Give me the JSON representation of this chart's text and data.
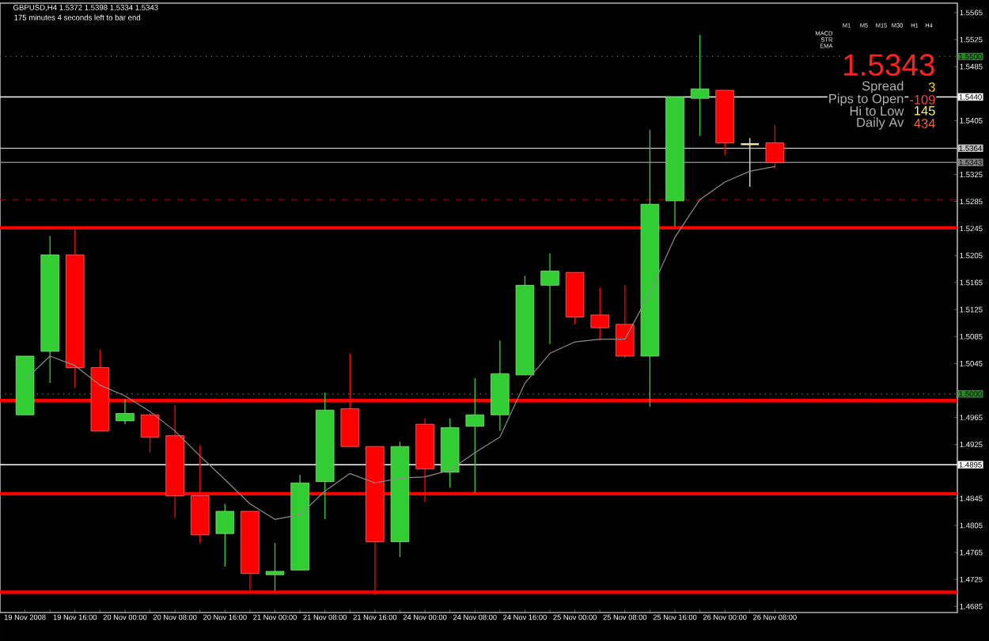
{
  "chart_data": {
    "type": "candlestick",
    "title": "GBPUSD,H4  1.5372 1.5398 1.5334 1.5343",
    "categories": [
      "19 Nov 2008",
      null,
      "19 Nov 16:00",
      null,
      "20 Nov 00:00",
      null,
      "20 Nov 08:00",
      null,
      "20 Nov 16:00",
      null,
      "21 Nov 00:00",
      null,
      "21 Nov 08:00",
      null,
      "21 Nov 16:00",
      null,
      "24 Nov 00:00",
      null,
      "24 Nov 08:00",
      null,
      "24 Nov 16:00",
      null,
      "25 Nov 00:00",
      null,
      "25 Nov 08:00",
      null,
      "25 Nov 16:00",
      null,
      "26 Nov 00:00",
      null,
      "26 Nov 08:00"
    ],
    "ohlc": [
      [
        1.4969,
        1.5056,
        1.4969,
        1.5056
      ],
      [
        1.5063,
        1.5234,
        1.5016,
        1.5206
      ],
      [
        1.5206,
        1.5248,
        1.5009,
        1.5039
      ],
      [
        1.5039,
        1.5065,
        1.4945,
        1.4945
      ],
      [
        1.496,
        1.4992,
        1.4955,
        1.4971
      ],
      [
        1.4969,
        1.4971,
        1.4913,
        1.4936
      ],
      [
        1.4938,
        1.4983,
        1.4816,
        1.4849
      ],
      [
        1.4849,
        1.4924,
        1.4779,
        1.4791
      ],
      [
        1.4793,
        1.4837,
        1.4744,
        1.4826
      ],
      [
        1.4826,
        1.4826,
        1.4708,
        1.4734
      ],
      [
        1.4732,
        1.4779,
        1.4708,
        1.4737
      ],
      [
        1.4739,
        1.488,
        1.4739,
        1.4868
      ],
      [
        1.487,
        1.5002,
        1.4814,
        1.4976
      ],
      [
        1.4978,
        1.506,
        1.4922,
        1.4922
      ],
      [
        1.4922,
        1.4922,
        1.4702,
        1.4781
      ],
      [
        1.4781,
        1.4929,
        1.4758,
        1.4922
      ],
      [
        1.4955,
        1.4964,
        1.484,
        1.4889
      ],
      [
        1.4884,
        1.4964,
        1.4861,
        1.495
      ],
      [
        1.4952,
        1.5023,
        1.4854,
        1.4969
      ],
      [
        1.4969,
        1.5079,
        1.4945,
        1.503
      ],
      [
        1.5028,
        1.5175,
        1.5028,
        1.5161
      ],
      [
        1.5161,
        1.5208,
        1.5074,
        1.5182
      ],
      [
        1.518,
        1.518,
        1.5103,
        1.5114
      ],
      [
        1.5117,
        1.5157,
        1.5079,
        1.5098
      ],
      [
        1.5103,
        1.5161,
        1.5053,
        1.5056
      ],
      [
        1.5056,
        1.5391,
        1.4981,
        1.5281
      ],
      [
        1.5286,
        1.544,
        1.5248,
        1.544
      ],
      [
        1.5438,
        1.5532,
        1.5382,
        1.5452
      ],
      [
        1.545,
        1.545,
        1.5354,
        1.5372
      ],
      [
        1.537,
        1.5379,
        1.5307,
        1.537
      ],
      [
        1.5372,
        1.5398,
        1.5334,
        1.5343
      ]
    ],
    "colors": [
      "#32cd32",
      "#32cd32",
      "#ff0000",
      "#ff0000",
      "#32cd32",
      "#ff0000",
      "#ff0000",
      "#ff0000",
      "#32cd32",
      "#ff0000",
      "#32cd32",
      "#32cd32",
      "#32cd32",
      "#ff0000",
      "#ff0000",
      "#32cd32",
      "#ff0000",
      "#32cd32",
      "#32cd32",
      "#32cd32",
      "#32cd32",
      "#32cd32",
      "#ff0000",
      "#ff0000",
      "#ff0000",
      "#32cd32",
      "#32cd32",
      "#32cd32",
      "#ff0000",
      "#eee8aa",
      "#ff0000"
    ],
    "series": [
      {
        "type": "line",
        "color": "#8c8c8c",
        "line_style": "solid",
        "values": [
          1.5021,
          1.5056,
          1.5042,
          1.5013,
          1.4997,
          1.4974,
          1.4945,
          1.4908,
          1.4873,
          1.4837,
          1.4814,
          1.4821,
          1.4856,
          1.4882,
          1.4868,
          1.4875,
          1.4877,
          1.4887,
          1.4913,
          1.4936,
          1.5016,
          1.506,
          1.5077,
          1.5081,
          1.5081,
          1.515,
          1.5232,
          1.5288,
          1.5314,
          1.533,
          1.5337
        ]
      }
    ],
    "ylim": [
      1.4676,
      1.5579
    ],
    "yticks": [
      1.4685,
      1.4725,
      1.4765,
      1.4805,
      1.4845,
      1.4925,
      1.4965,
      1.5045,
      1.5085,
      1.5125,
      1.5165,
      1.5205,
      1.5245,
      1.5285,
      1.5325,
      1.5405,
      1.5485,
      1.5525,
      1.5565
    ],
    "ref_lines": [
      {
        "axis": "y",
        "value": 1.55,
        "label": "1.5500",
        "color": "#228b22",
        "line_style": "dotted"
      },
      {
        "axis": "y",
        "value": 1.544,
        "label": "1.5440",
        "color": "#ffffff",
        "line_style": "solid"
      },
      {
        "axis": "y",
        "value": 1.5364,
        "label": "1.5364",
        "color": "#c0c0c0",
        "line_style": "solid"
      },
      {
        "axis": "y",
        "value": 1.5343,
        "label": "1.5343",
        "color": "#808080",
        "line_style": "solid"
      },
      {
        "axis": "y",
        "value": 1.5288,
        "color": "#8b0000",
        "line_style": "dashed"
      },
      {
        "axis": "y",
        "value": 1.5246,
        "color": "#ff0000",
        "line_style": "solid"
      },
      {
        "axis": "y",
        "value": 1.5,
        "label": "1.5000",
        "color": "#228b22",
        "line_style": "dotted"
      },
      {
        "axis": "y",
        "value": 1.499,
        "color": "#ff0000",
        "line_style": "solid"
      },
      {
        "axis": "y",
        "value": 1.4895,
        "label": "1.4895",
        "color": "#ffffff",
        "line_style": "solid"
      },
      {
        "axis": "y",
        "value": 1.4852,
        "color": "#ff0000",
        "line_style": "solid"
      },
      {
        "axis": "y",
        "value": 1.4706,
        "color": "#ff0000",
        "line_style": "solid"
      }
    ],
    "annotations": [
      "175 minutes 4 seconds left to bar end",
      "M1",
      "M5",
      "M15",
      "M30",
      "H1",
      "H4",
      "MACD",
      "STR",
      "EMA",
      "1.5343",
      "Spread",
      "3",
      "Pips to Open",
      "-109",
      "Hi to Low",
      "145",
      "Daily Av",
      "434"
    ],
    "grid": false
  }
}
